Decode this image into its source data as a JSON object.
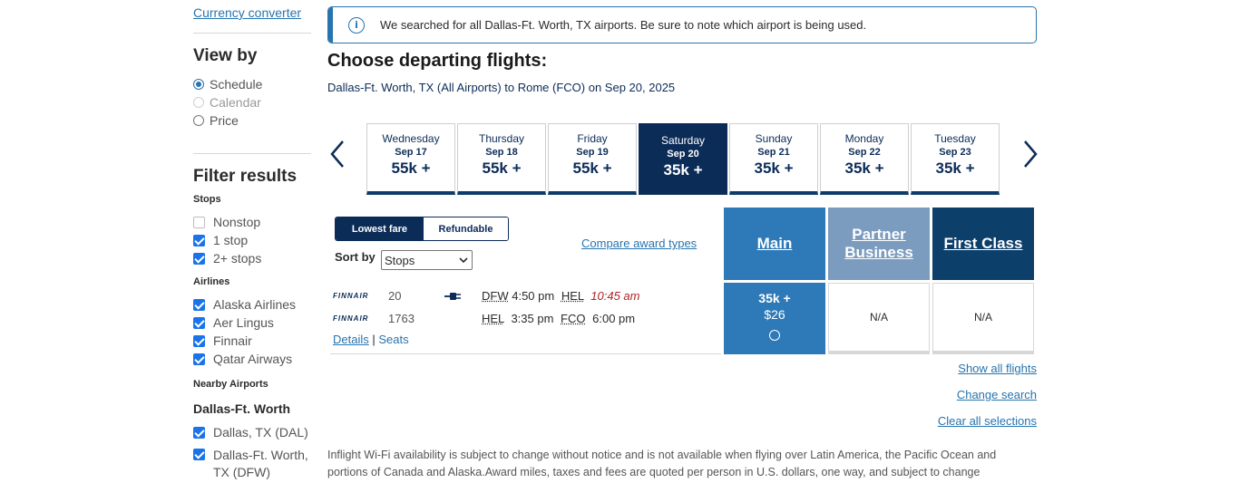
{
  "sidebar": {
    "currency_link": "Currency converter",
    "view_by": {
      "title": "View by",
      "options": [
        {
          "label": "Schedule",
          "state": "checked"
        },
        {
          "label": "Calendar",
          "state": "disabled"
        },
        {
          "label": "Price",
          "state": "unchecked"
        }
      ]
    },
    "filter": {
      "title": "Filter results",
      "stops_label": "Stops",
      "stops": [
        {
          "label": "Nonstop",
          "checked": false
        },
        {
          "label": "1 stop",
          "checked": true
        },
        {
          "label": "2+ stops",
          "checked": true
        }
      ],
      "airlines_label": "Airlines",
      "airlines": [
        {
          "label": "Alaska Airlines",
          "checked": true
        },
        {
          "label": "Aer Lingus",
          "checked": true
        },
        {
          "label": "Finnair",
          "checked": true
        },
        {
          "label": "Qatar Airways",
          "checked": true
        }
      ],
      "nearby_label": "Nearby Airports",
      "nearby_city": "Dallas-Ft. Worth",
      "nearby": [
        {
          "label": "Dallas, TX (DAL)",
          "checked": true
        },
        {
          "label": "Dallas-Ft. Worth,",
          "label2": "TX (DFW)",
          "checked": true
        }
      ]
    }
  },
  "banner": {
    "icon": "info-icon",
    "text": "We searched for all Dallas-Ft. Worth, TX airports. Be sure to note which airport is being used."
  },
  "main": {
    "title": "Choose departing flights:",
    "route": "Dallas-Ft. Worth, TX (All Airports) to Rome (FCO) on Sep 20, 2025",
    "dates": [
      {
        "dow": "Wednesday",
        "md": "Sep 17",
        "price": "55k +"
      },
      {
        "dow": "Thursday",
        "md": "Sep 18",
        "price": "55k +"
      },
      {
        "dow": "Friday",
        "md": "Sep 19",
        "price": "55k +"
      },
      {
        "dow": "Saturday",
        "md": "Sep 20",
        "price": "35k +",
        "selected": true
      },
      {
        "dow": "Sunday",
        "md": "Sep 21",
        "price": "35k +"
      },
      {
        "dow": "Monday",
        "md": "Sep 22",
        "price": "35k +"
      },
      {
        "dow": "Tuesday",
        "md": "Sep 23",
        "price": "35k +"
      }
    ],
    "fare_toggle": {
      "active": "Lowest fare",
      "inactive": "Refundable"
    },
    "compare_link": "Compare award types",
    "sort": {
      "label": "Sort by",
      "value": "Stops"
    },
    "cabins": [
      {
        "label": "Main",
        "color": "#2e7ab8"
      },
      {
        "label": "Partner Business",
        "color": "#7b9cbf"
      },
      {
        "label": "First Class",
        "color": "#0d3f6b"
      }
    ],
    "flight": {
      "segments": [
        {
          "airline": "FINNAIR",
          "number": "20",
          "from": "DFW",
          "dep": "4:50 pm",
          "to": "HEL",
          "arr": "10:45 am",
          "next_day": true
        },
        {
          "airline": "FINNAIR",
          "number": "1763",
          "from": "HEL",
          "dep": "3:35 pm",
          "to": "FCO",
          "arr": "6:00 pm",
          "next_day": false
        }
      ],
      "details_link": "Details",
      "separator": "|",
      "seats_link": "Seats",
      "fares": {
        "main_price": "35k +",
        "main_fee": "$26",
        "partner_business": "N/A",
        "first_class": "N/A"
      }
    },
    "links": {
      "show_all": "Show all flights",
      "change_search": "Change search",
      "clear": "Clear all selections"
    },
    "footnote": "Inflight Wi-Fi availability is subject to change without notice and is not available when flying over Latin America, the Pacific Ocean and portions of Canada and Alaska.Award miles, taxes and fees are quoted per person in U.S. dollars, one way, and subject to change"
  }
}
